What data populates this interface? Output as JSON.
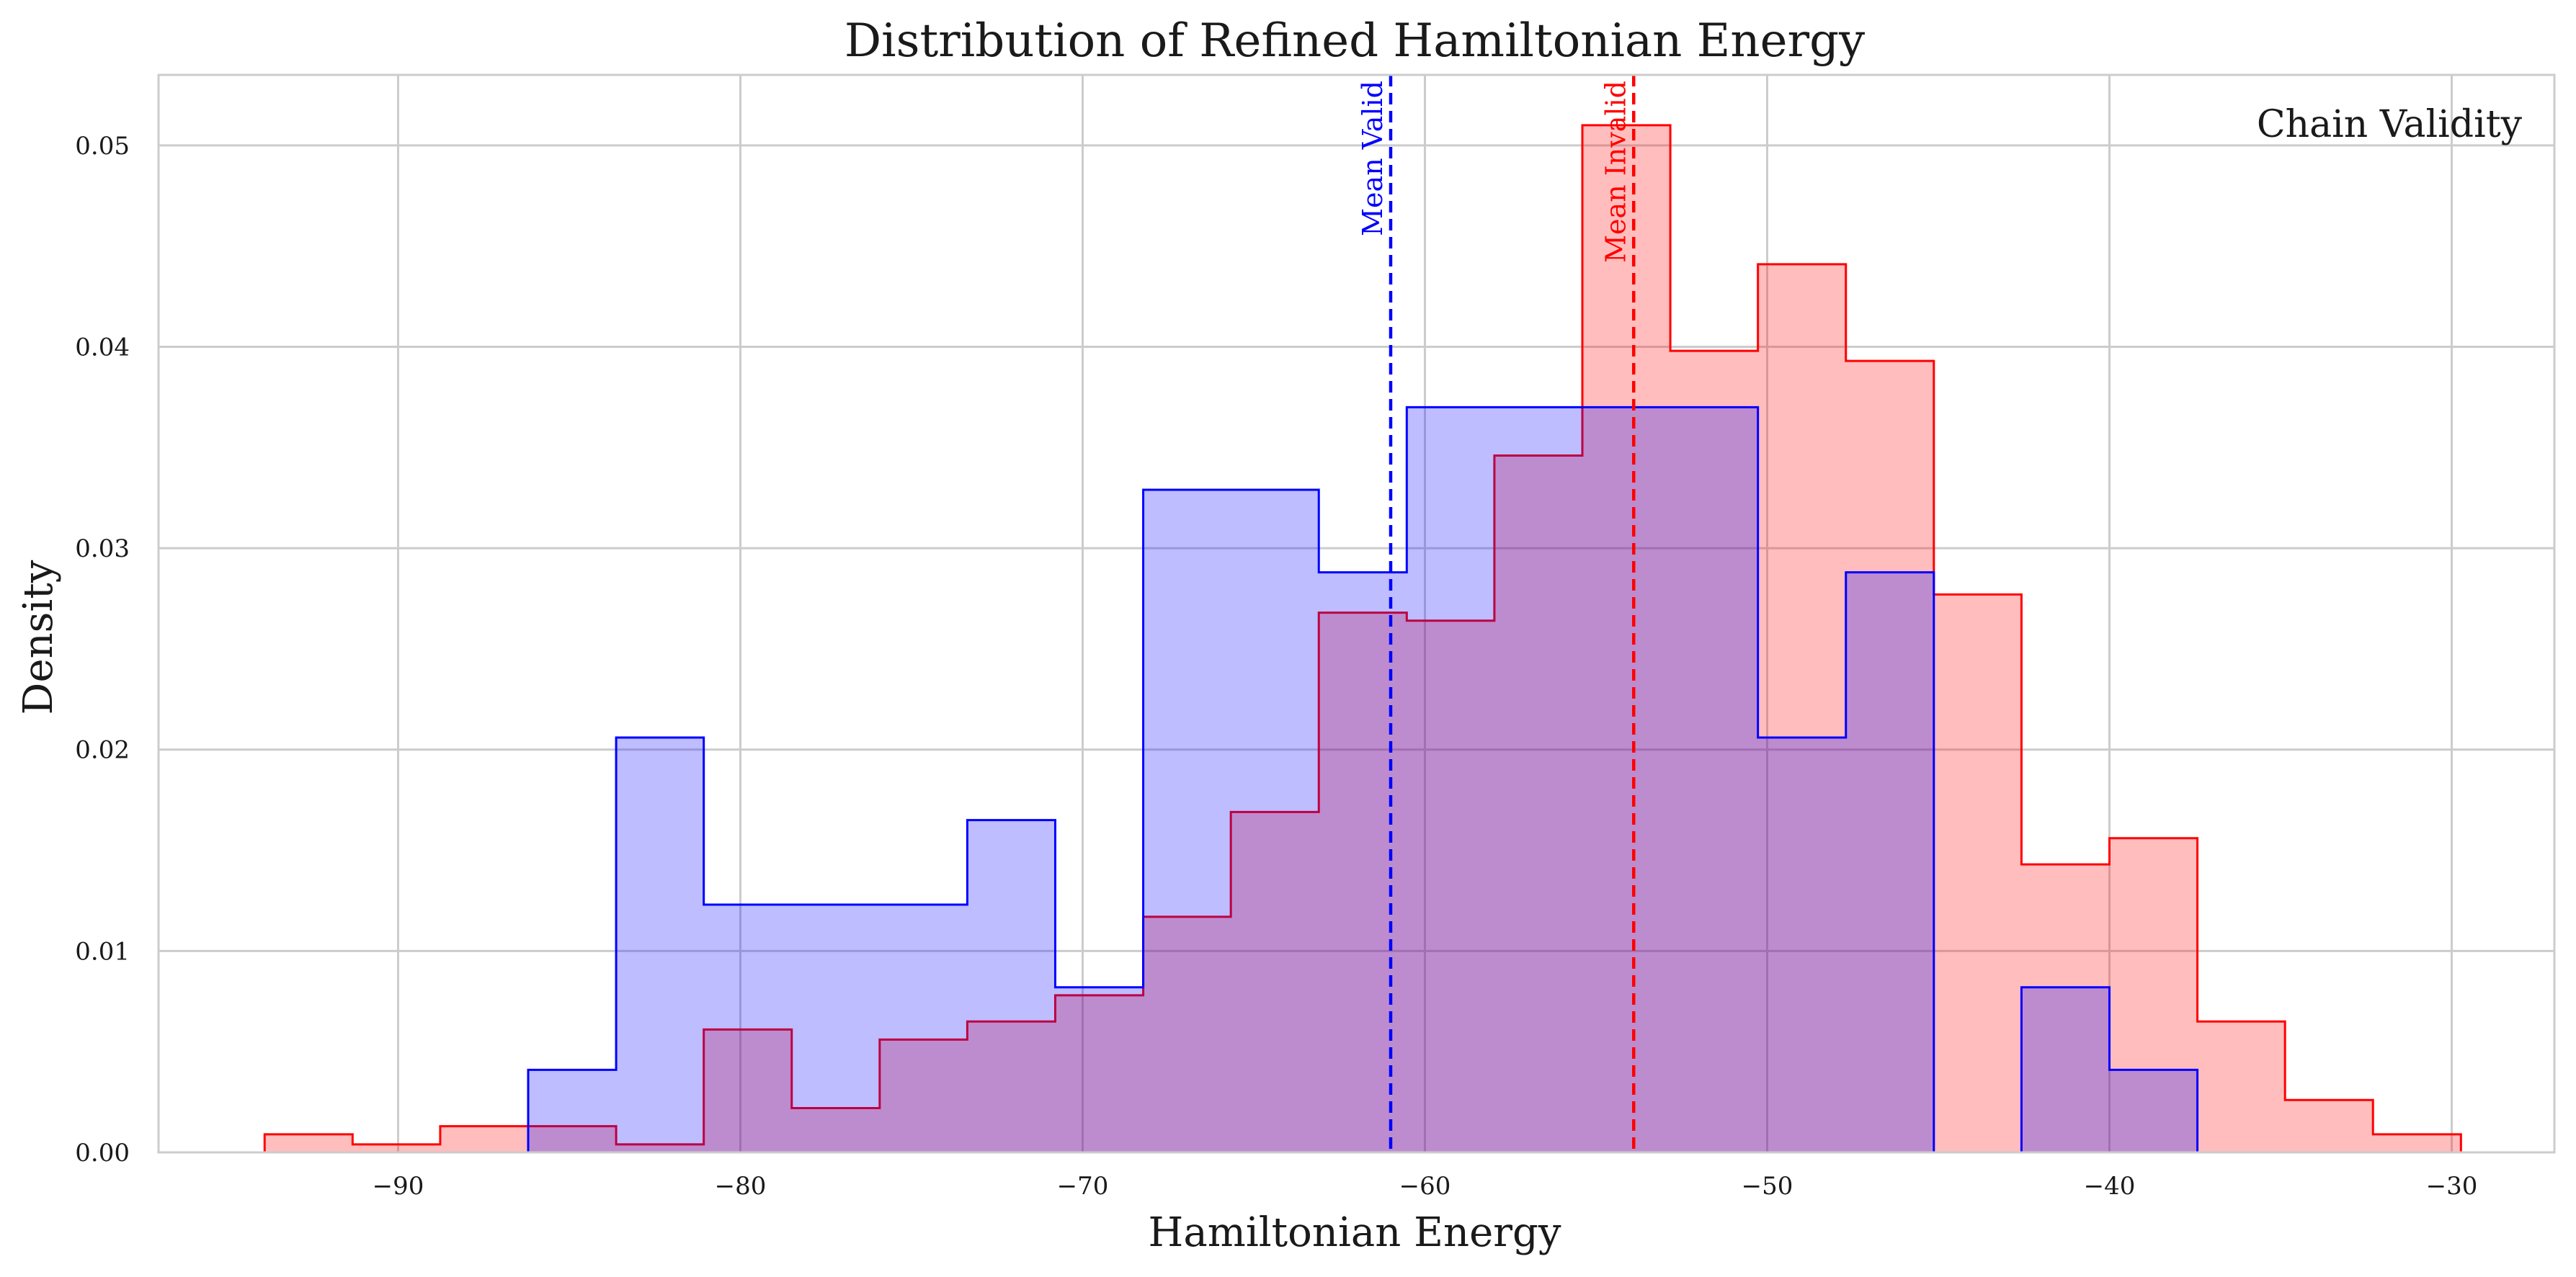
{
  "chart_data": {
    "type": "histogram",
    "title": "Distribution of Refined Hamiltonian Energy",
    "xlabel": "Hamiltonian Energy",
    "ylabel": "Density",
    "xlim": [
      -97,
      -27
    ],
    "ylim": [
      0,
      0.0535
    ],
    "xticks": [
      -90,
      -80,
      -70,
      -60,
      -50,
      -40,
      -30
    ],
    "xtick_labels": [
      "−90",
      "−80",
      "−70",
      "−60",
      "−50",
      "−40",
      "−30"
    ],
    "yticks": [
      0.0,
      0.01,
      0.02,
      0.03,
      0.04,
      0.05
    ],
    "ytick_labels": [
      "0.00",
      "0.01",
      "0.02",
      "0.03",
      "0.04",
      "0.05"
    ],
    "grid": true,
    "legend_title": "Chain Validity",
    "legend_position": "top-right",
    "series": [
      {
        "key": "invalid",
        "color": "#ff0000",
        "fill_opacity": 0.26,
        "bin_edges": [
          -93.9,
          -91.33,
          -88.77,
          -86.2,
          -83.63,
          -81.07,
          -78.5,
          -75.93,
          -73.37,
          -70.8,
          -68.23,
          -65.67,
          -63.1,
          -60.53,
          -57.97,
          -55.4,
          -52.83,
          -50.27,
          -47.7,
          -45.13,
          -42.57,
          -40.0,
          -37.43,
          -34.87,
          -32.3,
          -29.73
        ],
        "values": [
          0.0009,
          0.0004,
          0.0013,
          0.0013,
          0.0004,
          0.0061,
          0.0022,
          0.0056,
          0.0065,
          0.0078,
          0.0117,
          0.0169,
          0.0268,
          0.0264,
          0.0346,
          0.051,
          0.0398,
          0.0441,
          0.0393,
          0.0277,
          0.0143,
          0.0156,
          0.0065,
          0.0026,
          0.0009
        ]
      },
      {
        "key": "valid",
        "color": "#0000ff",
        "fill_opacity": 0.26,
        "bin_edges": [
          -86.2,
          -83.63,
          -81.07,
          -78.5,
          -75.93,
          -73.37,
          -70.8,
          -68.23,
          -65.67,
          -63.1,
          -60.53,
          -57.97,
          -55.4,
          -52.83,
          -50.27,
          -47.7,
          -45.13,
          -42.57,
          -40.0,
          -37.43
        ],
        "values": [
          0.0041,
          0.0206,
          0.0123,
          0.0123,
          0.0123,
          0.0165,
          0.0082,
          0.0329,
          0.0329,
          0.0288,
          0.037,
          0.037,
          0.037,
          0.037,
          0.0206,
          0.0288,
          0.0,
          0.0082,
          0.0041
        ]
      }
    ],
    "mean_lines": [
      {
        "key": "valid",
        "x": -61.0,
        "label": "Mean Valid",
        "color": "#0000ff"
      },
      {
        "key": "invalid",
        "x": -53.9,
        "label": "Mean Invalid",
        "color": "#ff0000"
      }
    ]
  }
}
